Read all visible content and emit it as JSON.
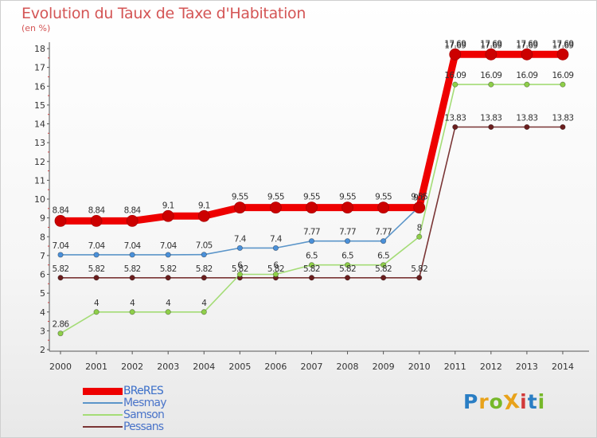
{
  "title": "Evolution du Taux de Taxe d'Habitation",
  "subtitle": "(en %)",
  "logo": {
    "text": "ProXiti",
    "letters": [
      "P",
      "r",
      "o",
      "X",
      "i",
      "t",
      "i"
    ],
    "colors": [
      "#2a7ec4",
      "#e8a21a",
      "#76b82a",
      "#e8a21a",
      "#d23a3a",
      "#2a7ec4",
      "#76b82a"
    ]
  },
  "chart_data": {
    "type": "line",
    "title": "Evolution du Taux de Taxe d'Habitation",
    "subtitle": "(en %)",
    "xlabel": "",
    "ylabel": "(en %)",
    "x": [
      "2000",
      "2001",
      "2002",
      "2003",
      "2004",
      "2005",
      "2006",
      "2007",
      "2008",
      "2009",
      "2010",
      "2011",
      "2012",
      "2013",
      "2014"
    ],
    "ylim": [
      2,
      18
    ],
    "yticks": [
      "2",
      "3",
      "4",
      "5",
      "6",
      "7",
      "8",
      "9",
      "10",
      "11",
      "12",
      "13",
      "14",
      "15",
      "16",
      "17",
      "18"
    ],
    "grid": false,
    "legend_position": "bottom-left",
    "series": [
      {
        "name": "BReRES",
        "color": "#ee0000",
        "point_color": "#cc0000",
        "values": [
          8.84,
          8.84,
          8.84,
          9.1,
          9.1,
          9.55,
          9.55,
          9.55,
          9.55,
          9.55,
          9.55,
          17.69,
          17.69,
          17.69,
          17.69
        ],
        "labels": [
          "8.84",
          "8.84",
          "8.84",
          "9.1",
          "9.1",
          "9.55",
          "9.55",
          "9.55",
          "9.55",
          "9.55",
          "9.55",
          "17.69",
          "17.69",
          "17.69",
          "17.69"
        ]
      },
      {
        "name": "Mesmay",
        "color": "#5b95c9",
        "point_color": "#4a90d9",
        "values": [
          7.04,
          7.04,
          7.04,
          7.04,
          7.05,
          7.4,
          7.4,
          7.77,
          7.77,
          7.77,
          9.6,
          17.69,
          17.69,
          17.69,
          17.69
        ],
        "labels": [
          "7.04",
          "7.04",
          "7.04",
          "7.04",
          "7.05",
          "7.4",
          "7.4",
          "7.77",
          "7.77",
          "7.77",
          "9.6",
          "17.69",
          "17.69",
          "17.69",
          "17.69"
        ]
      },
      {
        "name": "Samson",
        "color": "#a4dc76",
        "point_color": "#8fcf4a",
        "values": [
          2.86,
          4,
          4,
          4,
          4,
          6,
          6,
          6.5,
          6.5,
          6.5,
          8,
          16.09,
          16.09,
          16.09,
          16.09
        ],
        "labels": [
          "2.86",
          "4",
          "4",
          "4",
          "4",
          "6",
          "6",
          "6.5",
          "6.5",
          "6.5",
          "8",
          "16.09",
          "16.09",
          "16.09",
          "16.09"
        ]
      },
      {
        "name": "Pessans",
        "color": "#7a3535",
        "point_color": "#6b1e1e",
        "values": [
          5.82,
          5.82,
          5.82,
          5.82,
          5.82,
          5.82,
          5.82,
          5.82,
          5.82,
          5.82,
          5.82,
          13.83,
          13.83,
          13.83,
          13.83
        ],
        "labels": [
          "5.82",
          "5.82",
          "5.82",
          "5.82",
          "5.82",
          "5.82",
          "5.82",
          "5.82",
          "5.82",
          "5.82",
          "5.82",
          "13.83",
          "13.83",
          "13.83",
          "13.83"
        ]
      }
    ]
  }
}
